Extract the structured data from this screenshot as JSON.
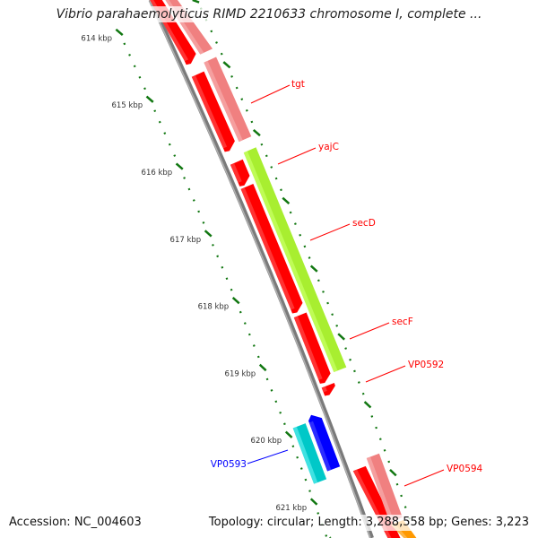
{
  "title": "Vibrio parahaemolyticus RIMD 2210633 chromosome I, complete ...",
  "footer": {
    "accession": "Accession: NC_004603",
    "summary": "Topology: circular; Length: 3,288,558 bp; Genes: 3,223"
  },
  "map": {
    "ticks_kbp": [
      614,
      615,
      616,
      617,
      618,
      619,
      620,
      621
    ],
    "tick_labels": [
      "614 kbp",
      "615 kbp",
      "616 kbp",
      "617 kbp",
      "618 kbp",
      "619 kbp",
      "620 kbp",
      "621 kbp"
    ],
    "colors": {
      "backbone": "#888888",
      "tick": "#117711",
      "red": "#ff0000",
      "pink": "#f08080",
      "lime": "#a8ee30",
      "blue": "#0000ff",
      "cyan": "#00c8c8",
      "orange": "#ff9900"
    },
    "features": [
      {
        "track": 1,
        "start": 613.6,
        "end": 614.77,
        "color": "#ff0000",
        "hi": "#ff4040",
        "arrow": "end"
      },
      {
        "track": 2,
        "start": 613.6,
        "end": 614.72,
        "color": "#f08080",
        "hi": "#f6a6a6",
        "arrow": "none"
      },
      {
        "track": 1,
        "start": 614.95,
        "end": 616.06,
        "color": "#ff0000",
        "hi": "#ff4040",
        "arrow": "end"
      },
      {
        "track": 2,
        "start": 614.84,
        "end": 616.01,
        "color": "#f08080",
        "hi": "#f6a6a6",
        "arrow": "none"
      },
      {
        "track": 1,
        "start": 616.25,
        "end": 616.57,
        "color": "#ff0000",
        "hi": "#ff4040",
        "arrow": "end"
      },
      {
        "track": 2,
        "start": 616.17,
        "end": 619.41,
        "color": "#a8ee30",
        "hi": "#c4ff60",
        "arrow": "none"
      },
      {
        "track": 1,
        "start": 616.61,
        "end": 618.45,
        "color": "#ff0000",
        "hi": "#ff4040",
        "arrow": "end"
      },
      {
        "track": 1,
        "start": 618.51,
        "end": 619.49,
        "color": "#ff0000",
        "hi": "#ff4040",
        "arrow": "end"
      },
      {
        "track": 1,
        "start": 619.55,
        "end": 619.67,
        "color": "#ff0000",
        "hi": "#ff4040",
        "arrow": "end"
      },
      {
        "track": -1,
        "start": 619.86,
        "end": 620.66,
        "color": "#0000ff",
        "hi": "#3838ff",
        "arrow": "start"
      },
      {
        "track": -2,
        "start": 619.93,
        "end": 620.76,
        "color": "#00c8c8",
        "hi": "#50e8e8",
        "arrow": "none"
      },
      {
        "track": 1,
        "start": 620.78,
        "end": 622.2,
        "color": "#ff0000",
        "hi": "#ff4040",
        "arrow": "none"
      },
      {
        "track": 2,
        "start": 620.68,
        "end": 621.62,
        "color": "#f08080",
        "hi": "#f6a6a6",
        "arrow": "none"
      },
      {
        "track": 2,
        "start": 621.66,
        "end": 622.2,
        "color": "#ff9900",
        "hi": "#ffbb55",
        "arrow": "none"
      }
    ],
    "labels": [
      {
        "text": "tgt",
        "color": "#ff0000"
      },
      {
        "text": "yajC",
        "color": "#ff0000"
      },
      {
        "text": "secD",
        "color": "#ff0000"
      },
      {
        "text": "secF",
        "color": "#ff0000"
      },
      {
        "text": "VP0592",
        "color": "#ff0000"
      },
      {
        "text": "VP0593",
        "color": "#0000ff"
      },
      {
        "text": "VP0594",
        "color": "#ff0000"
      }
    ]
  }
}
